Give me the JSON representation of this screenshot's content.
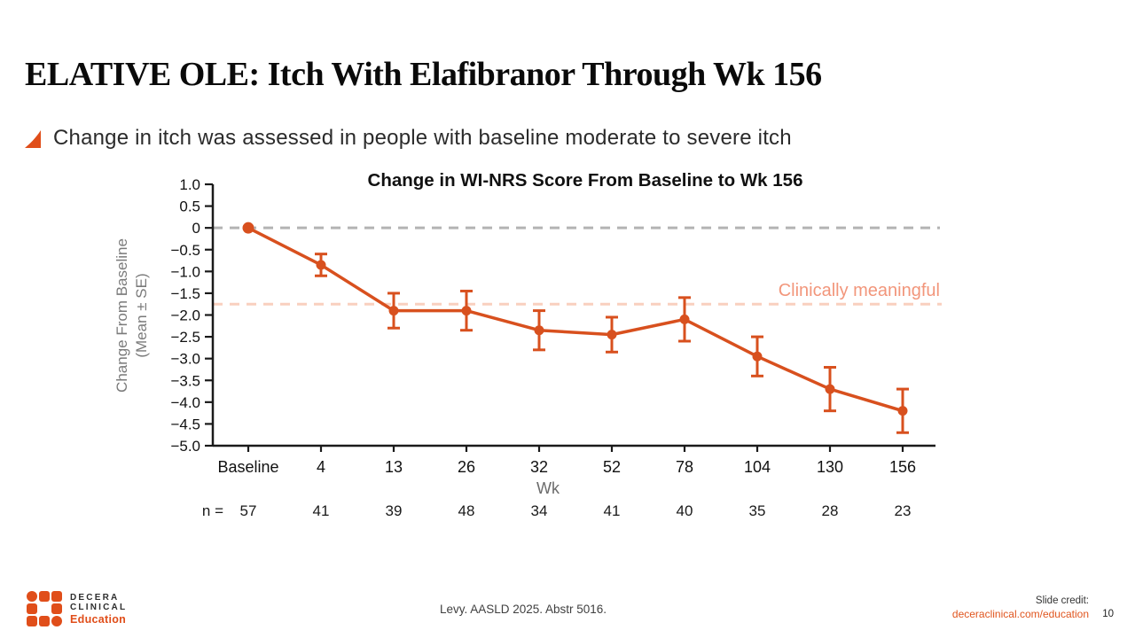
{
  "slide": {
    "title": "ELATIVE OLE: Itch With Elafibranor Through Wk 156",
    "bullet": "Change in itch was assessed in people with baseline moderate to severe itch"
  },
  "chart_data": {
    "type": "line",
    "title": "Change in WI-NRS Score From Baseline to Wk 156",
    "xlabel": "Wk",
    "ylabel": "Change From Baseline (Mean ± SE)",
    "ylabel_line1": "Change From Baseline",
    "ylabel_line2": "(Mean ± SE)",
    "categories": [
      "Baseline",
      "4",
      "13",
      "26",
      "32",
      "52",
      "78",
      "104",
      "130",
      "156"
    ],
    "series": [
      {
        "name": "Elafibranor",
        "values": [
          0,
          -0.85,
          -1.9,
          -1.9,
          -2.35,
          -2.45,
          -2.1,
          -2.95,
          -3.7,
          -4.2
        ],
        "se": [
          0,
          0.25,
          0.4,
          0.45,
          0.45,
          0.4,
          0.5,
          0.45,
          0.5,
          0.5
        ],
        "color": "#d8501e"
      }
    ],
    "n_label": "n =",
    "n_values": [
      "57",
      "41",
      "39",
      "48",
      "34",
      "41",
      "40",
      "35",
      "28",
      "23"
    ],
    "ylim": [
      -5.0,
      1.0
    ],
    "ytick_step": 0.5,
    "grid": false,
    "zero_line": {
      "value": 0,
      "color": "#b3b3b3"
    },
    "clinical_line": {
      "value": -1.75,
      "color": "#f9d0bf",
      "label": "Clinically meaningful",
      "label_color": "#f2967b"
    },
    "axis_color": "#1a1a1a",
    "label_gray": "#7a7a7a"
  },
  "footer": {
    "citation": "Levy. AASLD 2025. Abstr 5016.",
    "slide_credit_label": "Slide credit:",
    "slide_credit_link": "deceraclinical.com/education",
    "page_number": "10"
  },
  "logo": {
    "line1": "DECERA",
    "line2": "CLINICAL",
    "line3": "Education"
  },
  "colors": {
    "accent_orange": "#d8501e",
    "logo_orange": "#e04e1a",
    "salmon_text": "#f2967b",
    "salmon_dash": "#f9d0bf",
    "gray_dash": "#b3b3b3"
  }
}
